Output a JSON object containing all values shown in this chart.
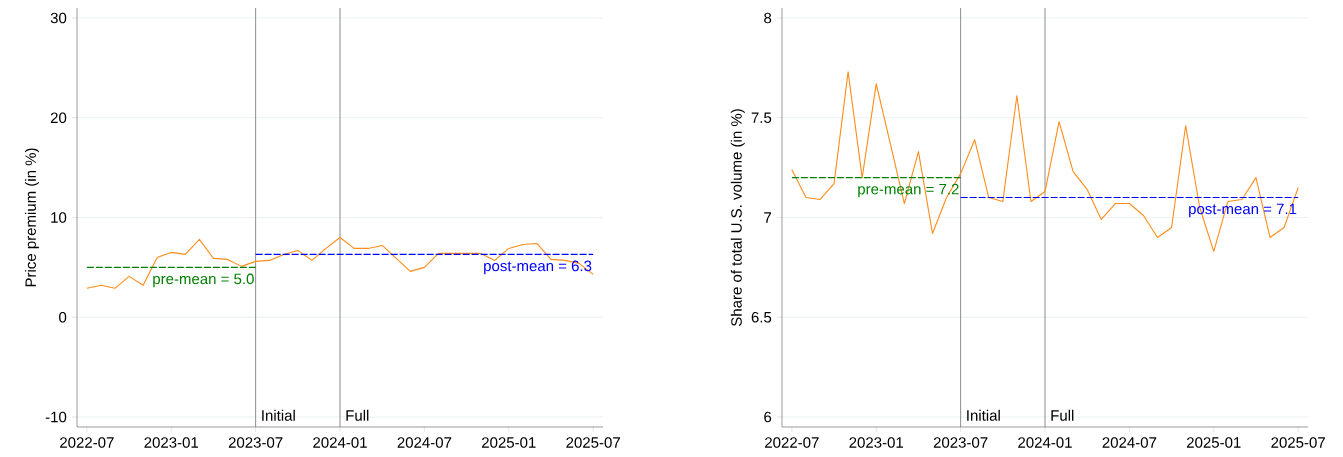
{
  "chart_data": [
    {
      "type": "line",
      "ylabel": "Price premium (in %)",
      "x": [
        "2022-07",
        "2022-08",
        "2022-09",
        "2022-10",
        "2022-11",
        "2022-12",
        "2023-01",
        "2023-02",
        "2023-03",
        "2023-04",
        "2023-05",
        "2023-06",
        "2023-07",
        "2023-08",
        "2023-09",
        "2023-10",
        "2023-11",
        "2023-12",
        "2024-01",
        "2024-02",
        "2024-03",
        "2024-04",
        "2024-05",
        "2024-06",
        "2024-07",
        "2024-08",
        "2024-09",
        "2024-10",
        "2024-11",
        "2024-12",
        "2025-01",
        "2025-02",
        "2025-03",
        "2025-04",
        "2025-05",
        "2025-06",
        "2025-07"
      ],
      "series": [
        {
          "color": "#ff8c1a",
          "values": [
            2.9,
            3.2,
            2.9,
            4.1,
            3.2,
            6.0,
            6.5,
            6.3,
            7.8,
            5.9,
            5.8,
            5.1,
            5.6,
            5.7,
            6.3,
            6.7,
            5.7,
            6.9,
            8.0,
            6.9,
            6.9,
            7.2,
            5.9,
            4.6,
            5.0,
            6.4,
            6.4,
            6.4,
            6.4,
            5.7,
            6.9,
            7.3,
            7.4,
            5.8,
            5.7,
            5.4,
            4.3
          ]
        },
        {
          "name": "pre-mean = 5.0",
          "color": "#008000",
          "line_style": "dashed",
          "x": [
            "2022-07",
            "2023-07"
          ],
          "values": [
            5.0,
            5.0
          ]
        },
        {
          "name": "post-mean = 6.3",
          "color": "#0000ff",
          "line_style": "dashed",
          "x": [
            "2023-07",
            "2025-07"
          ],
          "values": [
            6.3,
            6.3
          ]
        }
      ],
      "xlim": [
        "2022-06-10",
        "2025-07-22"
      ],
      "xticks": [
        "2022-07",
        "2023-01",
        "2023-07",
        "2024-01",
        "2024-07",
        "2025-01",
        "2025-07"
      ],
      "ylim": [
        -11,
        31
      ],
      "yticks": [
        -10,
        0,
        10,
        20,
        30
      ],
      "grid": "y",
      "ref_lines": [
        {
          "axis": "x",
          "value": "2023-07",
          "label": "Initial",
          "color": "#808080"
        },
        {
          "axis": "x",
          "value": "2024-01",
          "label": "Full",
          "color": "#808080"
        }
      ]
    },
    {
      "type": "line",
      "ylabel": "Share of total U.S. volume (in %)",
      "x": [
        "2022-07",
        "2022-08",
        "2022-09",
        "2022-10",
        "2022-11",
        "2022-12",
        "2023-01",
        "2023-02",
        "2023-03",
        "2023-04",
        "2023-05",
        "2023-06",
        "2023-07",
        "2023-08",
        "2023-09",
        "2023-10",
        "2023-11",
        "2023-12",
        "2024-01",
        "2024-02",
        "2024-03",
        "2024-04",
        "2024-05",
        "2024-06",
        "2024-07",
        "2024-08",
        "2024-09",
        "2024-10",
        "2024-11",
        "2024-12",
        "2025-01",
        "2025-02",
        "2025-03",
        "2025-04",
        "2025-05",
        "2025-06",
        "2025-07"
      ],
      "series": [
        {
          "color": "#ff8c1a",
          "values": [
            7.24,
            7.1,
            7.09,
            7.17,
            7.73,
            7.2,
            7.67,
            7.37,
            7.07,
            7.33,
            6.92,
            7.1,
            7.22,
            7.39,
            7.1,
            7.08,
            7.61,
            7.08,
            7.13,
            7.48,
            7.23,
            7.14,
            6.99,
            7.07,
            7.07,
            7.01,
            6.9,
            6.95,
            7.46,
            7.05,
            6.83,
            7.08,
            7.09,
            7.2,
            6.9,
            6.95,
            7.15
          ]
        },
        {
          "name": "pre-mean = 7.2",
          "color": "#008000",
          "line_style": "dashed",
          "x": [
            "2022-07",
            "2023-07"
          ],
          "values": [
            7.2,
            7.2
          ]
        },
        {
          "name": "post-mean = 7.1",
          "color": "#0000ff",
          "line_style": "dashed",
          "x": [
            "2023-07",
            "2025-07"
          ],
          "values": [
            7.1,
            7.1
          ]
        }
      ],
      "xlim": [
        "2022-06-10",
        "2025-07-22"
      ],
      "xticks": [
        "2022-07",
        "2023-01",
        "2023-07",
        "2024-01",
        "2024-07",
        "2025-01",
        "2025-07"
      ],
      "ylim": [
        5.95,
        8.05
      ],
      "yticks": [
        6,
        6.5,
        7,
        7.5,
        8
      ],
      "grid": "y",
      "ref_lines": [
        {
          "axis": "x",
          "value": "2023-07",
          "label": "Initial",
          "color": "#808080"
        },
        {
          "axis": "x",
          "value": "2024-01",
          "label": "Full",
          "color": "#808080"
        }
      ]
    }
  ]
}
